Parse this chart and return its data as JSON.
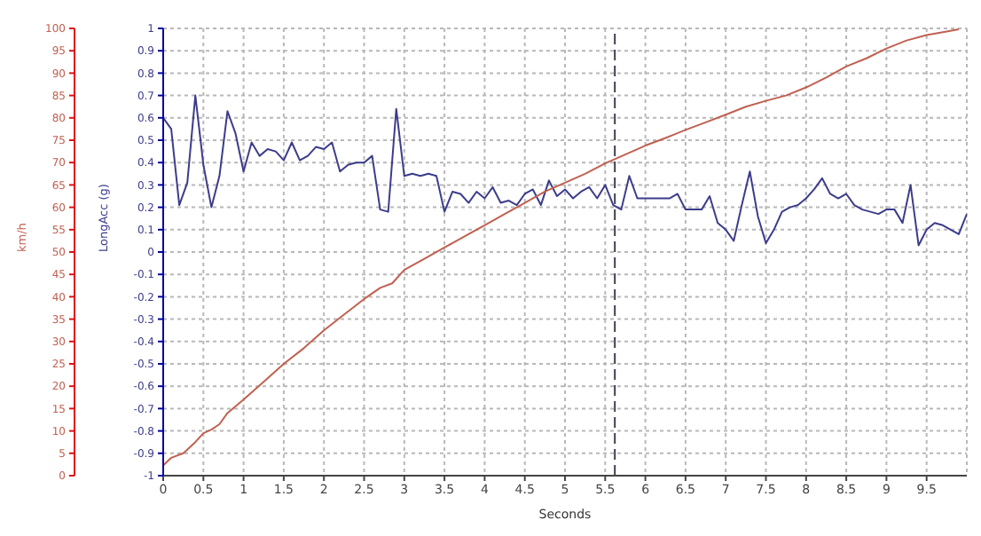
{
  "chart_data": {
    "type": "line",
    "xlabel": "Seconds",
    "ylabel": "LongAcc (g)",
    "y2label": "km/h",
    "xlim": [
      0,
      10
    ],
    "xticks": [
      0,
      0.5,
      1,
      1.5,
      2,
      2.5,
      3,
      3.5,
      4,
      4.5,
      5,
      5.5,
      6,
      6.5,
      7,
      7.5,
      8,
      8.5,
      9,
      9.5
    ],
    "ylim": [
      -1,
      1
    ],
    "yticks": [
      -1,
      -0.9,
      -0.8,
      -0.7,
      -0.6,
      -0.5,
      -0.4,
      -0.3,
      -0.2,
      -0.1,
      0,
      0.1,
      0.2,
      0.3,
      0.4,
      0.5,
      0.6,
      0.7,
      0.8,
      0.9,
      1
    ],
    "y2lim": [
      0,
      100
    ],
    "y2ticks": [
      0,
      5,
      10,
      15,
      20,
      25,
      30,
      35,
      40,
      45,
      50,
      55,
      60,
      65,
      70,
      75,
      80,
      85,
      90,
      95,
      100
    ],
    "grid": true,
    "marker": "none",
    "line_style": "solid",
    "ref_lines": [
      {
        "axis": "x",
        "value": 5.62,
        "color": "#404050",
        "line_style": "dashed"
      }
    ],
    "series": [
      {
        "color": "#3c3c8c",
        "x": [
          0,
          0.1,
          0.2,
          0.3,
          0.4,
          0.5,
          0.6,
          0.7,
          0.8,
          0.9,
          1,
          1.1,
          1.2,
          1.3,
          1.4,
          1.5,
          1.6,
          1.7,
          1.8,
          1.9,
          2,
          2.1,
          2.2,
          2.3,
          2.4,
          2.5,
          2.6,
          2.7,
          2.8,
          2.9,
          3,
          3.1,
          3.2,
          3.3,
          3.4,
          3.5,
          3.6,
          3.7,
          3.8,
          3.9,
          4,
          4.1,
          4.2,
          4.3,
          4.4,
          4.5,
          4.6,
          4.7,
          4.8,
          4.9,
          5,
          5.1,
          5.2,
          5.3,
          5.4,
          5.5,
          5.6,
          5.7,
          5.8,
          5.9,
          6,
          6.1,
          6.2,
          6.3,
          6.4,
          6.5,
          6.6,
          6.7,
          6.8,
          6.9,
          7,
          7.1,
          7.2,
          7.3,
          7.4,
          7.5,
          7.6,
          7.7,
          7.8,
          7.9,
          8,
          8.1,
          8.2,
          8.3,
          8.4,
          8.5,
          8.6,
          8.7,
          8.8,
          8.9,
          9,
          9.1,
          9.2,
          9.3,
          9.4,
          9.5,
          9.6,
          9.7,
          9.8,
          9.9,
          10
        ],
        "values": [
          0.6,
          0.55,
          0.21,
          0.31,
          0.7,
          0.39,
          0.2,
          0.34,
          0.63,
          0.53,
          0.36,
          0.49,
          0.43,
          0.46,
          0.45,
          0.41,
          0.49,
          0.41,
          0.43,
          0.47,
          0.46,
          0.49,
          0.36,
          0.39,
          0.4,
          0.4,
          0.43,
          0.19,
          0.18,
          0.64,
          0.34,
          0.35,
          0.34,
          0.35,
          0.34,
          0.18,
          0.27,
          0.26,
          0.22,
          0.27,
          0.24,
          0.29,
          0.22,
          0.23,
          0.21,
          0.26,
          0.28,
          0.21,
          0.32,
          0.25,
          0.28,
          0.24,
          0.27,
          0.29,
          0.24,
          0.3,
          0.21,
          0.19,
          0.34,
          0.24,
          0.24,
          0.24,
          0.24,
          0.24,
          0.26,
          0.19,
          0.19,
          0.19,
          0.25,
          0.13,
          0.1,
          0.05,
          0.21,
          0.36,
          0.16,
          0.04,
          0.1,
          0.18,
          0.2,
          0.21,
          0.24,
          0.28,
          0.33,
          0.26,
          0.24,
          0.26,
          0.21,
          0.19,
          0.18,
          0.17,
          0.19,
          0.19,
          0.13,
          0.3,
          0.03,
          0.1,
          0.13,
          0.12,
          0.1,
          0.08,
          0.17
        ]
      },
      {
        "color": "#c06050",
        "axis": "y2",
        "x": [
          0,
          0.1,
          0.25,
          0.4,
          0.5,
          0.6,
          0.7,
          0.8,
          1,
          1.25,
          1.5,
          1.75,
          2,
          2.25,
          2.5,
          2.7,
          2.85,
          3,
          3.25,
          3.5,
          3.75,
          4,
          4.25,
          4.5,
          4.75,
          5,
          5.25,
          5.5,
          5.75,
          6,
          6.25,
          6.5,
          6.75,
          7,
          7.25,
          7.5,
          7.75,
          8,
          8.25,
          8.5,
          8.75,
          9,
          9.25,
          9.5,
          9.75,
          9.9
        ],
        "values": [
          2.3,
          4,
          5,
          7.5,
          9.5,
          10.3,
          11.5,
          14,
          17,
          21,
          25,
          28.5,
          32.5,
          36,
          39.5,
          42,
          43,
          46,
          48.5,
          51,
          53.5,
          56,
          58.5,
          61,
          63.5,
          65.5,
          67.5,
          69.8,
          71.8,
          73.8,
          75.5,
          77.3,
          79,
          80.7,
          82.5,
          83.8,
          85,
          86.8,
          89,
          91.5,
          93.3,
          95.5,
          97.3,
          98.5,
          99.3,
          99.8
        ]
      }
    ]
  }
}
